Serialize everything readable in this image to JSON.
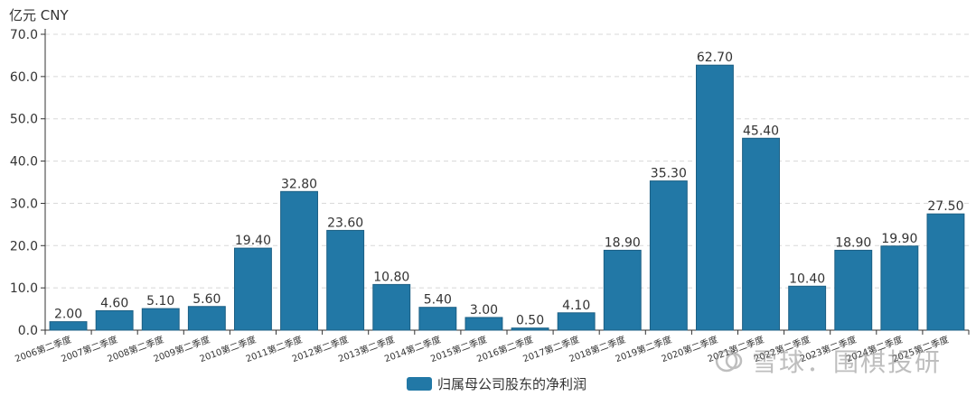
{
  "unit_label": "亿元  CNY",
  "legend": {
    "label": "归属母公司股东的净利润"
  },
  "watermark": {
    "text": "雪球：围棋投研"
  },
  "colors": {
    "bar": "#2278a6",
    "bar_stroke": "#1b5f84",
    "axis": "#333333",
    "grid": "#d8d8d8",
    "text": "#333333"
  },
  "chart_data": {
    "type": "bar",
    "categories": [
      "2006第二季度",
      "2007第二季度",
      "2008第二季度",
      "2009第二季度",
      "2010第二季度",
      "2011第二季度",
      "2012第二季度",
      "2013第二季度",
      "2014第二季度",
      "2015第二季度",
      "2016第二季度",
      "2017第二季度",
      "2018第二季度",
      "2019第二季度",
      "2020第二季度",
      "2021第二季度",
      "2022第二季度",
      "2023第二季度",
      "2024第二季度",
      "2025第二季度"
    ],
    "series": [
      {
        "name": "归属母公司股东的净利润",
        "values": [
          2.0,
          4.6,
          5.1,
          5.6,
          19.4,
          32.8,
          23.6,
          10.8,
          5.4,
          3.0,
          0.5,
          4.1,
          18.9,
          35.3,
          62.7,
          45.4,
          10.4,
          18.9,
          19.9,
          27.5
        ],
        "labels": [
          "2.00",
          "4.60",
          "5.10",
          "5.60",
          "19.40",
          "32.80",
          "23.60",
          "10.80",
          "5.40",
          "3.00",
          "0.50",
          "4.10",
          "18.90",
          "35.30",
          "62.70",
          "45.40",
          "10.40",
          "18.90",
          "19.90",
          "27.50"
        ]
      }
    ],
    "ylim": [
      0,
      70
    ],
    "yticks": [
      0,
      10,
      20,
      30,
      40,
      50,
      60,
      70
    ],
    "ytick_labels": [
      "0.0",
      "10.0",
      "20.0",
      "30.0",
      "40.0",
      "50.0",
      "60.0",
      "70.0"
    ],
    "grid": true,
    "legend_position": "bottom-center"
  }
}
